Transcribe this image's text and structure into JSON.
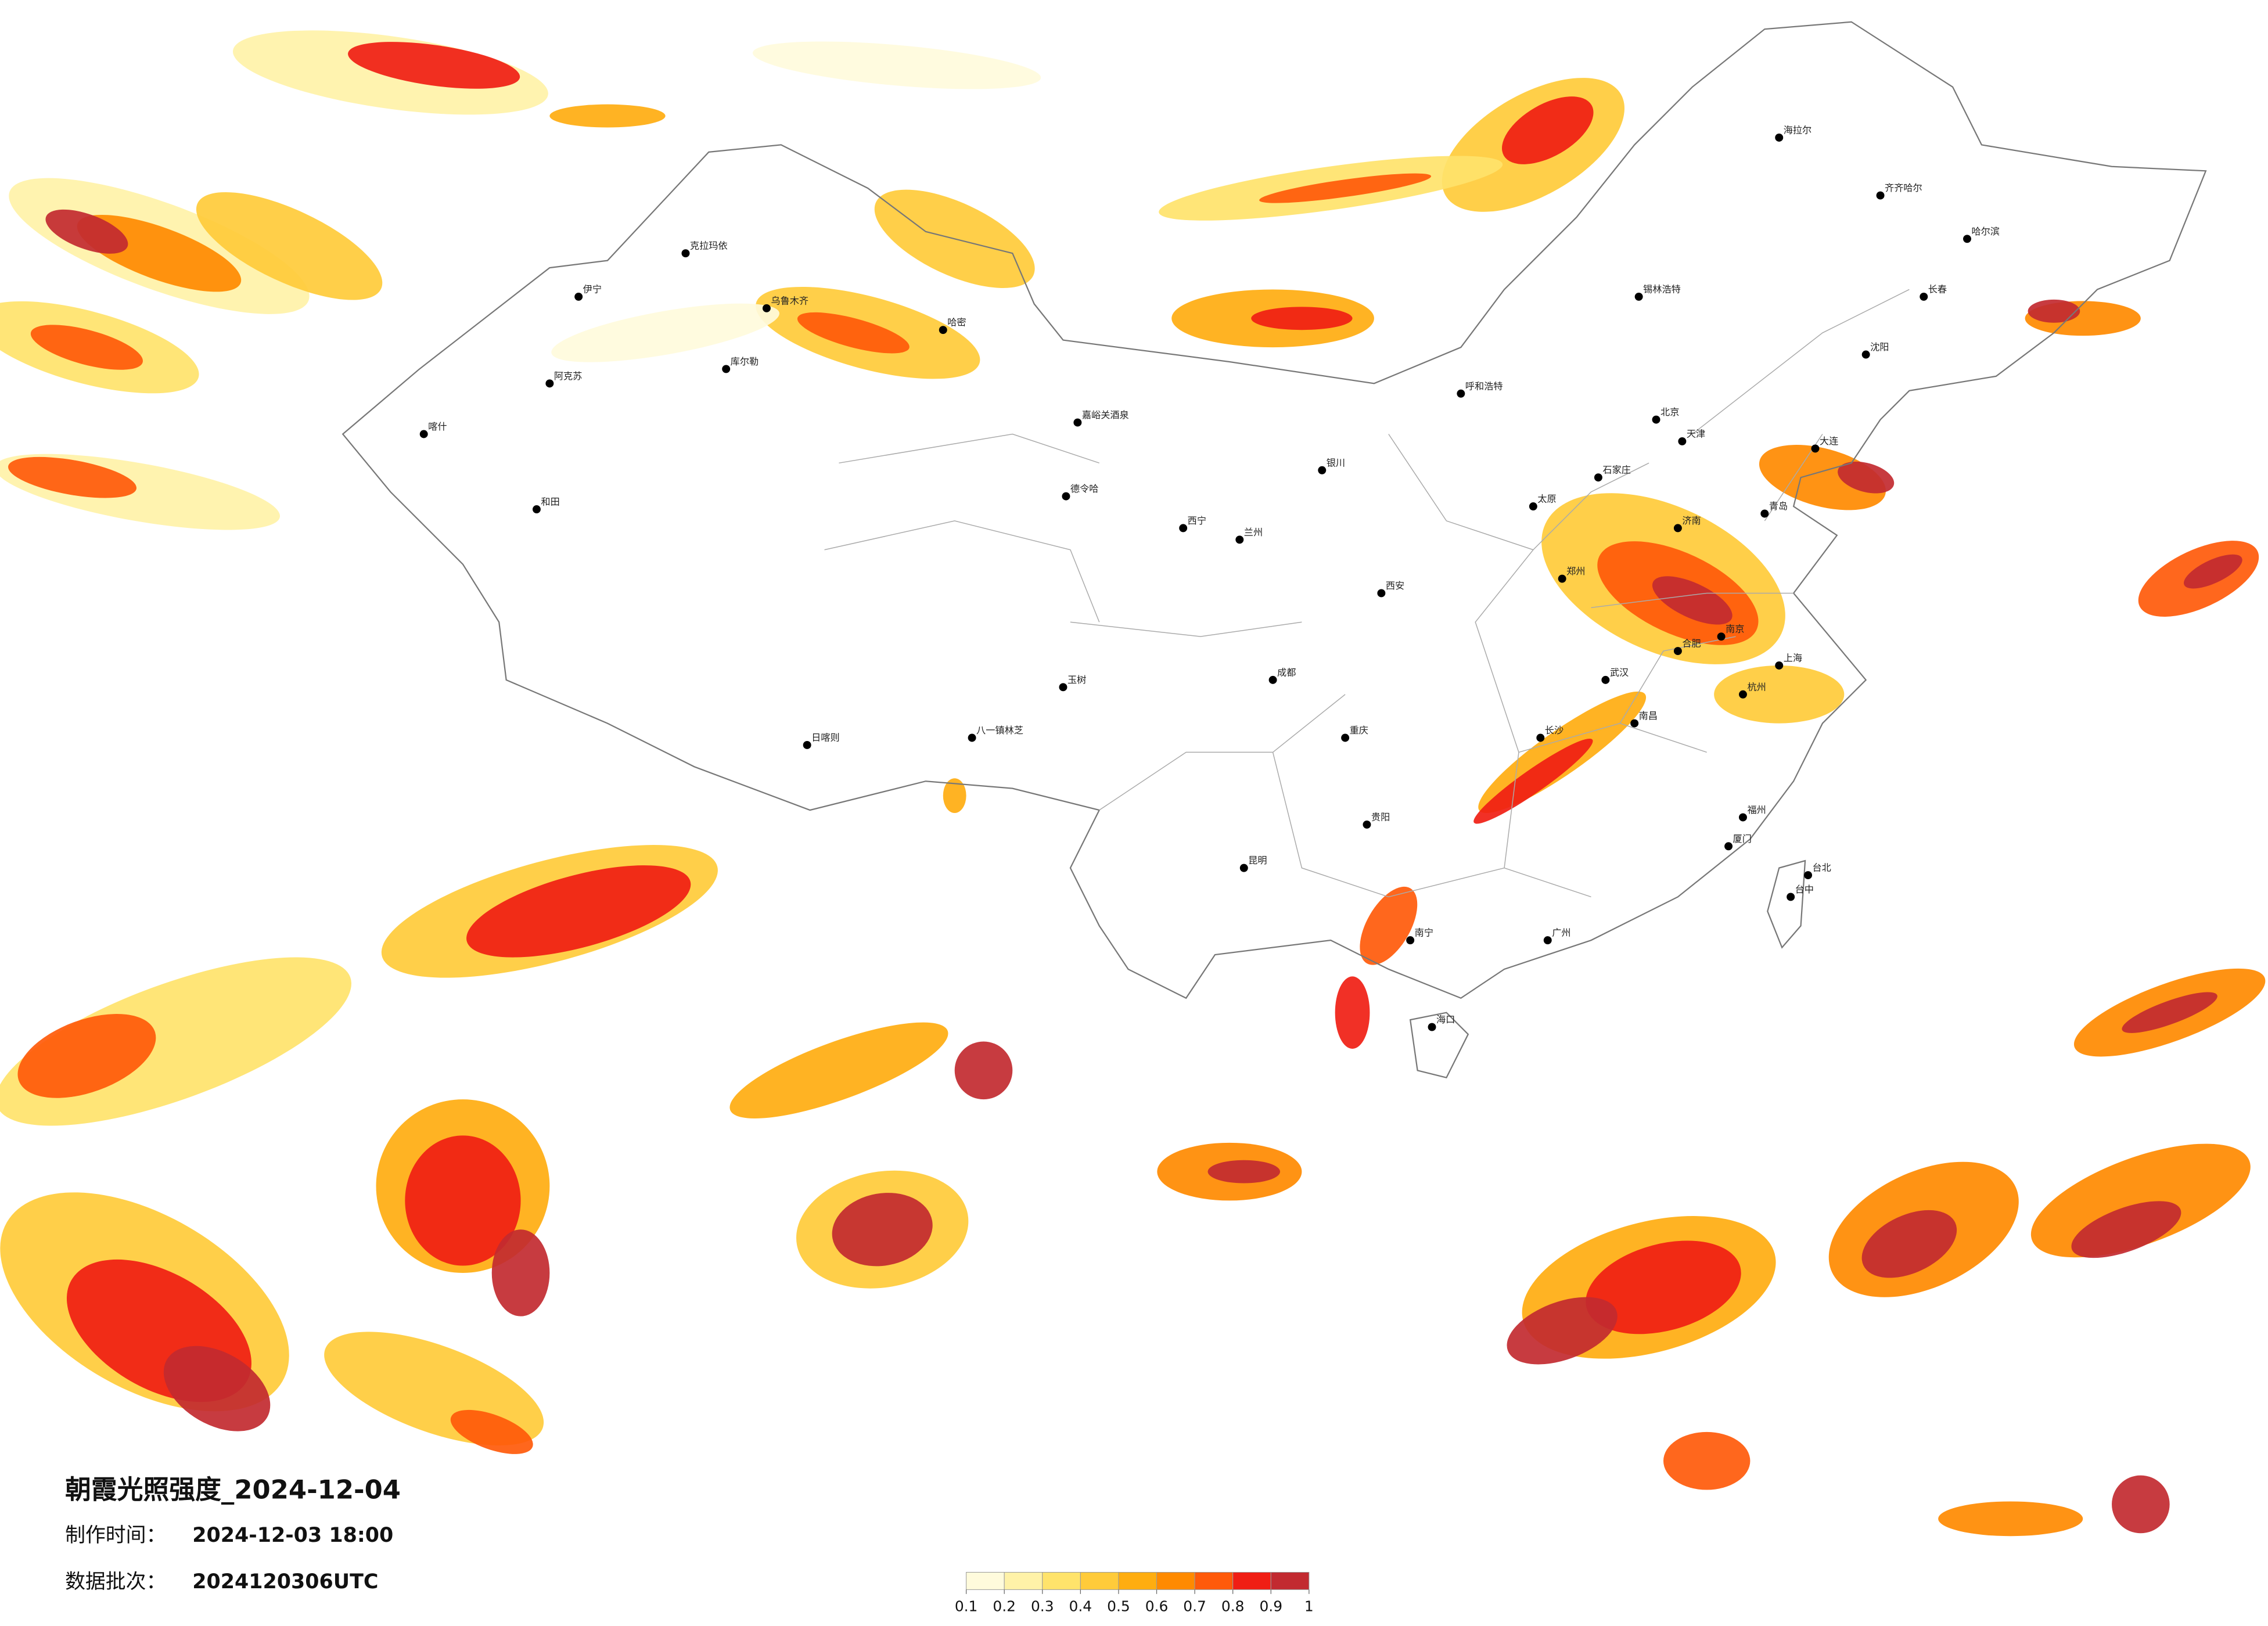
{
  "title": "朝霞光照强度_2024-12-04",
  "production_time": {
    "label": "制作时间：",
    "value": "2024-12-03 18:00"
  },
  "data_batch": {
    "label": "数据批次：",
    "value": "2024120306UTC"
  },
  "legend": {
    "ticks": [
      0.1,
      0.2,
      0.3,
      0.4,
      0.5,
      0.6,
      0.7,
      0.8,
      0.9,
      1
    ],
    "colors": [
      "#fffbdc",
      "#fff2a8",
      "#ffe36b",
      "#ffcb3a",
      "#ffad10",
      "#ff8a00",
      "#ff5a0a",
      "#f01e14",
      "#c22a30"
    ]
  },
  "cities": [
    "克拉玛依",
    "乌鲁木齐",
    "伊宁",
    "阿克苏",
    "喀什",
    "和田",
    "库尔勒",
    "哈密",
    "嘉峪关酒泉",
    "德令哈",
    "西宁",
    "兰州",
    "银川",
    "呼和浩特",
    "锡林浩特",
    "北京",
    "天津",
    "石家庄",
    "太原",
    "济南",
    "郑州",
    "西安",
    "武汉",
    "南京",
    "上海",
    "杭州",
    "合肥",
    "长沙",
    "南昌",
    "福州",
    "广州",
    "南宁",
    "海口",
    "昆明",
    "贵阳",
    "成都",
    "重庆",
    "八一镇林芝",
    "日喀则",
    "哈尔滨",
    "长春",
    "沈阳",
    "大连",
    "海拉尔",
    "齐齐哈尔",
    "台北",
    "台中",
    "青岛",
    "厦门",
    "玉树"
  ]
}
